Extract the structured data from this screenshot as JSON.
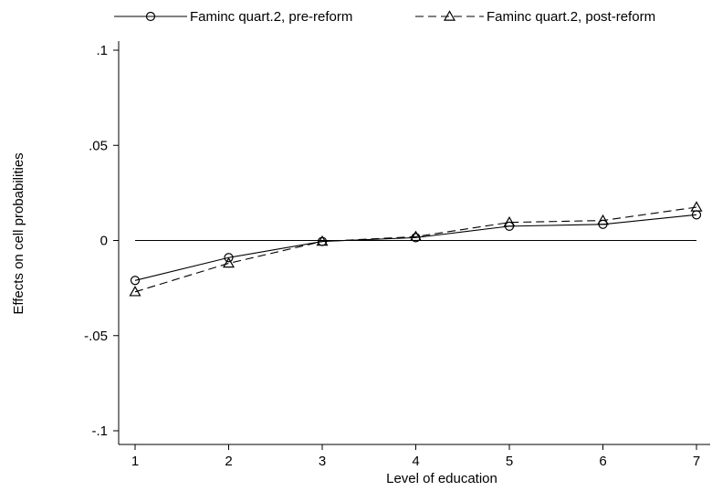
{
  "chart_data": {
    "type": "line",
    "title": "",
    "xlabel": "Level of education",
    "ylabel": "Effects on cell probabilities",
    "x": [
      1,
      2,
      3,
      4,
      5,
      6,
      7
    ],
    "xticks": [
      "1",
      "2",
      "3",
      "4",
      "5",
      "6",
      "7"
    ],
    "xlim": [
      1,
      7
    ],
    "ylim": [
      -0.1,
      0.1
    ],
    "yticks": [
      -0.1,
      -0.05,
      0,
      0.05,
      0.1
    ],
    "ytick_labels": [
      "-.1",
      "-.05",
      "0",
      ".05",
      ".1"
    ],
    "grid": false,
    "legend_position": "top",
    "reference_line_y": 0,
    "series": [
      {
        "name": "Faminc quart.2, pre-reform",
        "marker": "circle",
        "line_style": "solid",
        "color": "#000000",
        "values": [
          -0.021,
          -0.009,
          -0.0005,
          0.0015,
          0.0075,
          0.0085,
          0.0135
        ]
      },
      {
        "name": "Faminc quart.2, post-reform",
        "marker": "triangle",
        "line_style": "dashed",
        "color": "#000000",
        "values": [
          -0.027,
          -0.012,
          -0.0005,
          0.002,
          0.0095,
          0.0105,
          0.0175
        ]
      }
    ]
  }
}
